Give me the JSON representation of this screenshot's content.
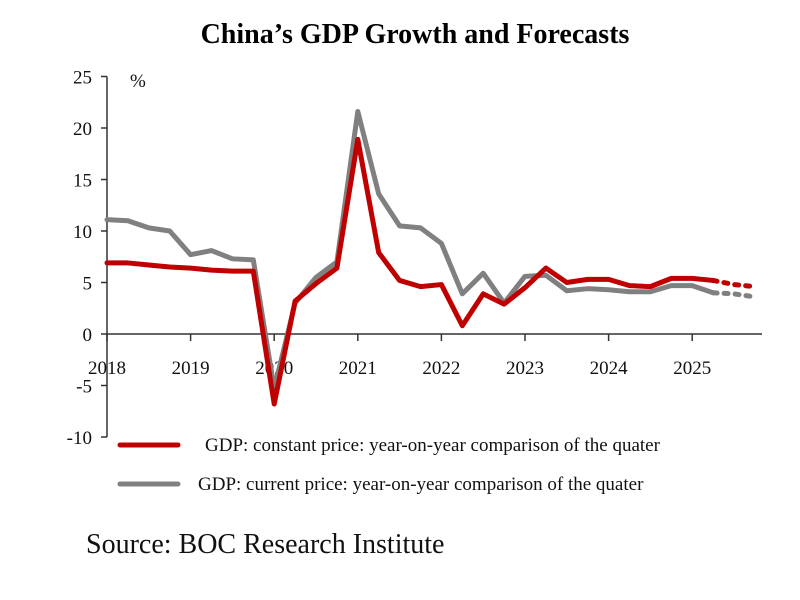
{
  "chart_data": {
    "type": "line",
    "title": "China’s GDP Growth and Forecasts",
    "ylabel": "%",
    "ylim": [
      -10,
      25
    ],
    "yticks": [
      "25",
      "20",
      "15",
      "10",
      "5",
      "0",
      "-5",
      "-10"
    ],
    "ytick_values": [
      25,
      20,
      15,
      10,
      5,
      0,
      -5,
      -10
    ],
    "xtick_labels": [
      "2018",
      "2019",
      "2020",
      "2021",
      "2022",
      "2023",
      "2024",
      "2025"
    ],
    "x": [
      "2018Q1",
      "2018Q2",
      "2018Q3",
      "2018Q4",
      "2019Q1",
      "2019Q2",
      "2019Q3",
      "2019Q4",
      "2020Q1",
      "2020Q2",
      "2020Q3",
      "2020Q4",
      "2021Q1",
      "2021Q2",
      "2021Q3",
      "2021Q4",
      "2022Q1",
      "2022Q2",
      "2022Q3",
      "2022Q4",
      "2023Q1",
      "2023Q2",
      "2023Q3",
      "2023Q4",
      "2024Q1",
      "2024Q2",
      "2024Q3",
      "2024Q4",
      "2025Q1",
      "2025Q2",
      "2025Q3",
      "2025Q4"
    ],
    "forecast_from": "2025Q3",
    "grid": false,
    "legend_position": "bottom",
    "series": [
      {
        "name": "GDP: constant price: year-on-year comparison of the quater",
        "color": "#c00000",
        "values": [
          6.9,
          6.9,
          6.7,
          6.5,
          6.4,
          6.2,
          6.1,
          6.1,
          -6.8,
          3.2,
          4.9,
          6.4,
          18.9,
          7.9,
          5.2,
          4.6,
          4.8,
          0.8,
          3.9,
          2.9,
          4.5,
          6.4,
          5.0,
          5.3,
          5.3,
          4.7,
          4.6,
          5.4,
          5.4,
          5.2,
          4.8,
          4.6
        ]
      },
      {
        "name": "GDP: current price: year-on-year comparison of the quater",
        "color": "#808080",
        "values": [
          11.1,
          11.0,
          10.3,
          10.0,
          7.7,
          8.1,
          7.3,
          7.2,
          -5.3,
          3.0,
          5.5,
          7.0,
          21.6,
          13.6,
          10.5,
          10.3,
          8.8,
          3.9,
          5.9,
          3.0,
          5.6,
          5.7,
          4.2,
          4.4,
          4.3,
          4.1,
          4.1,
          4.7,
          4.7,
          4.0,
          3.9,
          3.6
        ]
      }
    ]
  },
  "source": "Source: BOC Research Institute"
}
